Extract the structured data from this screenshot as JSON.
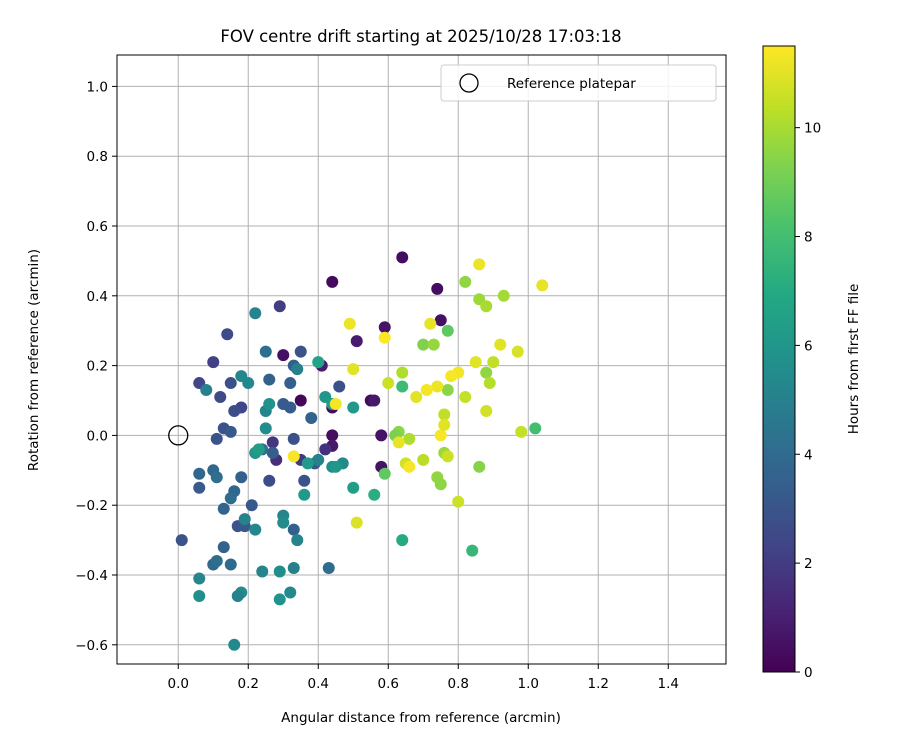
{
  "chart_data": {
    "type": "scatter",
    "title": "FOV centre drift starting at 2025/10/28 17:03:18",
    "xlabel": "Angular distance from reference (arcmin)",
    "ylabel": "Rotation from reference (arcmin)",
    "xlim": [
      -0.175,
      1.565
    ],
    "ylim": [
      -0.655,
      1.09
    ],
    "xticks": [
      0.0,
      0.2,
      0.4,
      0.6,
      0.8,
      1.0,
      1.2,
      1.4
    ],
    "xtick_labels": [
      "0.0",
      "0.2",
      "0.4",
      "0.6",
      "0.8",
      "1.0",
      "1.2",
      "1.4"
    ],
    "yticks": [
      -0.6,
      -0.4,
      -0.2,
      0.0,
      0.2,
      0.4,
      0.6,
      0.8,
      1.0
    ],
    "ytick_labels": [
      "−0.6",
      "−0.4",
      "−0.2",
      "0.0",
      "0.2",
      "0.4",
      "0.6",
      "0.8",
      "1.0"
    ],
    "grid": true,
    "legend": {
      "placement": "top-right",
      "label": "Reference platepar"
    },
    "reference_point": {
      "x": 0.0,
      "y": 0.0
    },
    "colorbar": {
      "label": "Hours from first FF file",
      "range": [
        0,
        11.5
      ],
      "ticks": [
        0,
        2,
        4,
        6,
        8,
        10
      ],
      "tick_labels": [
        "0",
        "2",
        "4",
        "6",
        "8",
        "10"
      ],
      "colormap": "viridis"
    },
    "points": [
      {
        "x": 0.44,
        "y": 0.44,
        "h": 0.3
      },
      {
        "x": 0.64,
        "y": 0.51,
        "h": 0.4
      },
      {
        "x": 0.74,
        "y": 0.42,
        "h": 0.4
      },
      {
        "x": 0.59,
        "y": 0.31,
        "h": 0.6
      },
      {
        "x": 0.75,
        "y": 0.33,
        "h": 0.5
      },
      {
        "x": 0.51,
        "y": 0.27,
        "h": 0.9
      },
      {
        "x": 0.55,
        "y": 0.1,
        "h": 0.3
      },
      {
        "x": 0.56,
        "y": 0.1,
        "h": 0.8
      },
      {
        "x": 0.44,
        "y": 0.08,
        "h": 0.4
      },
      {
        "x": 0.44,
        "y": 0.0,
        "h": 0.4
      },
      {
        "x": 0.58,
        "y": 0.0,
        "h": 0.6
      },
      {
        "x": 0.44,
        "y": -0.03,
        "h": 0.8
      },
      {
        "x": 0.58,
        "y": -0.09,
        "h": 0.6
      },
      {
        "x": 0.35,
        "y": 0.1,
        "h": 0.2
      },
      {
        "x": 0.3,
        "y": 0.23,
        "h": 0.5
      },
      {
        "x": 0.41,
        "y": 0.2,
        "h": 0.9
      },
      {
        "x": 0.29,
        "y": 0.37,
        "h": 2.1
      },
      {
        "x": 0.1,
        "y": 0.21,
        "h": 2.2
      },
      {
        "x": 0.14,
        "y": 0.29,
        "h": 2.6
      },
      {
        "x": 0.06,
        "y": 0.15,
        "h": 2.4
      },
      {
        "x": 0.12,
        "y": 0.11,
        "h": 2.6
      },
      {
        "x": 0.15,
        "y": 0.15,
        "h": 2.8
      },
      {
        "x": 0.18,
        "y": 0.08,
        "h": 2.4
      },
      {
        "x": 0.16,
        "y": 0.07,
        "h": 2.7
      },
      {
        "x": 0.13,
        "y": 0.02,
        "h": 2.9
      },
      {
        "x": 0.11,
        "y": -0.01,
        "h": 3.0
      },
      {
        "x": 0.15,
        "y": 0.01,
        "h": 3.2
      },
      {
        "x": 0.27,
        "y": -0.02,
        "h": 1.8
      },
      {
        "x": 0.28,
        "y": -0.07,
        "h": 1.5
      },
      {
        "x": 0.33,
        "y": -0.01,
        "h": 2.8
      },
      {
        "x": 0.35,
        "y": -0.07,
        "h": 1.9
      },
      {
        "x": 0.36,
        "y": -0.13,
        "h": 3.0
      },
      {
        "x": 0.39,
        "y": -0.08,
        "h": 3.1
      },
      {
        "x": 0.42,
        "y": -0.04,
        "h": 1.6
      },
      {
        "x": 0.46,
        "y": 0.14,
        "h": 2.8
      },
      {
        "x": 0.35,
        "y": 0.24,
        "h": 2.9
      },
      {
        "x": 0.32,
        "y": 0.08,
        "h": 3.3
      },
      {
        "x": 0.32,
        "y": 0.15,
        "h": 3.5
      },
      {
        "x": 0.33,
        "y": 0.2,
        "h": 3.4
      },
      {
        "x": 0.3,
        "y": 0.09,
        "h": 3.3
      },
      {
        "x": 0.26,
        "y": 0.16,
        "h": 3.6
      },
      {
        "x": 0.25,
        "y": 0.24,
        "h": 4.2
      },
      {
        "x": 0.22,
        "y": -0.05,
        "h": 4.0
      },
      {
        "x": 0.24,
        "y": -0.04,
        "h": 4.3
      },
      {
        "x": 0.21,
        "y": -0.2,
        "h": 3.2
      },
      {
        "x": 0.18,
        "y": -0.12,
        "h": 3.5
      },
      {
        "x": 0.16,
        "y": -0.16,
        "h": 3.8
      },
      {
        "x": 0.15,
        "y": -0.18,
        "h": 4.1
      },
      {
        "x": 0.13,
        "y": -0.21,
        "h": 3.7
      },
      {
        "x": 0.17,
        "y": -0.26,
        "h": 2.9
      },
      {
        "x": 0.19,
        "y": -0.26,
        "h": 3.1
      },
      {
        "x": 0.13,
        "y": -0.32,
        "h": 3.6
      },
      {
        "x": 0.1,
        "y": -0.37,
        "h": 3.9
      },
      {
        "x": 0.11,
        "y": -0.36,
        "h": 4.2
      },
      {
        "x": 0.15,
        "y": -0.37,
        "h": 4.0
      },
      {
        "x": 0.06,
        "y": -0.11,
        "h": 3.8
      },
      {
        "x": 0.06,
        "y": -0.15,
        "h": 3.3
      },
      {
        "x": 0.1,
        "y": -0.1,
        "h": 3.8
      },
      {
        "x": 0.11,
        "y": -0.12,
        "h": 4.2
      },
      {
        "x": 0.01,
        "y": -0.3,
        "h": 3.0
      },
      {
        "x": 0.33,
        "y": -0.27,
        "h": 3.5
      },
      {
        "x": 0.26,
        "y": -0.13,
        "h": 2.7
      },
      {
        "x": 0.27,
        "y": -0.05,
        "h": 3.4
      },
      {
        "x": 0.38,
        "y": 0.05,
        "h": 3.6
      },
      {
        "x": 0.43,
        "y": -0.38,
        "h": 4.1
      },
      {
        "x": 0.22,
        "y": 0.35,
        "h": 5.1
      },
      {
        "x": 0.18,
        "y": 0.17,
        "h": 5.3
      },
      {
        "x": 0.08,
        "y": 0.13,
        "h": 5.0
      },
      {
        "x": 0.2,
        "y": 0.15,
        "h": 5.4
      },
      {
        "x": 0.25,
        "y": 0.07,
        "h": 5.2
      },
      {
        "x": 0.25,
        "y": 0.02,
        "h": 5.6
      },
      {
        "x": 0.26,
        "y": 0.09,
        "h": 5.8
      },
      {
        "x": 0.34,
        "y": 0.19,
        "h": 5.0
      },
      {
        "x": 0.4,
        "y": 0.21,
        "h": 6.6
      },
      {
        "x": 0.42,
        "y": 0.11,
        "h": 6.0
      },
      {
        "x": 0.44,
        "y": 0.09,
        "h": 6.3
      },
      {
        "x": 0.5,
        "y": 0.08,
        "h": 6.1
      },
      {
        "x": 0.3,
        "y": -0.23,
        "h": 5.2
      },
      {
        "x": 0.3,
        "y": -0.25,
        "h": 5.5
      },
      {
        "x": 0.34,
        "y": -0.3,
        "h": 5.1
      },
      {
        "x": 0.36,
        "y": -0.17,
        "h": 6.2
      },
      {
        "x": 0.4,
        "y": -0.07,
        "h": 5.0
      },
      {
        "x": 0.47,
        "y": -0.08,
        "h": 5.4
      },
      {
        "x": 0.44,
        "y": -0.09,
        "h": 5.6
      },
      {
        "x": 0.5,
        "y": -0.15,
        "h": 6.4
      },
      {
        "x": 0.22,
        "y": -0.27,
        "h": 5.3
      },
      {
        "x": 0.24,
        "y": -0.39,
        "h": 5.2
      },
      {
        "x": 0.29,
        "y": -0.39,
        "h": 5.6
      },
      {
        "x": 0.33,
        "y": -0.38,
        "h": 5.0
      },
      {
        "x": 0.32,
        "y": -0.45,
        "h": 5.4
      },
      {
        "x": 0.29,
        "y": -0.47,
        "h": 5.8
      },
      {
        "x": 0.18,
        "y": -0.45,
        "h": 5.5
      },
      {
        "x": 0.17,
        "y": -0.46,
        "h": 5.0
      },
      {
        "x": 0.06,
        "y": -0.41,
        "h": 5.3
      },
      {
        "x": 0.06,
        "y": -0.46,
        "h": 5.7
      },
      {
        "x": 0.16,
        "y": -0.6,
        "h": 5.4
      },
      {
        "x": 0.19,
        "y": -0.24,
        "h": 5.1
      },
      {
        "x": 0.22,
        "y": -0.05,
        "h": 6.0
      },
      {
        "x": 0.23,
        "y": -0.04,
        "h": 6.4
      },
      {
        "x": 0.37,
        "y": -0.08,
        "h": 6.2
      },
      {
        "x": 0.45,
        "y": -0.09,
        "h": 6.0
      },
      {
        "x": 0.56,
        "y": -0.17,
        "h": 7.2
      },
      {
        "x": 0.64,
        "y": -0.3,
        "h": 7.0
      },
      {
        "x": 0.64,
        "y": 0.14,
        "h": 7.8
      },
      {
        "x": 0.84,
        "y": -0.33,
        "h": 7.6
      },
      {
        "x": 1.02,
        "y": 0.02,
        "h": 8.0
      },
      {
        "x": 0.59,
        "y": -0.11,
        "h": 8.6
      },
      {
        "x": 0.77,
        "y": 0.3,
        "h": 8.6
      },
      {
        "x": 0.63,
        "y": 0.01,
        "h": 9.5
      },
      {
        "x": 0.62,
        "y": 0.0,
        "h": 9.2
      },
      {
        "x": 0.7,
        "y": 0.26,
        "h": 9.3
      },
      {
        "x": 0.73,
        "y": 0.26,
        "h": 9.7
      },
      {
        "x": 0.77,
        "y": 0.13,
        "h": 9.5
      },
      {
        "x": 0.82,
        "y": 0.44,
        "h": 9.6
      },
      {
        "x": 0.86,
        "y": 0.39,
        "h": 9.8
      },
      {
        "x": 0.88,
        "y": 0.37,
        "h": 10.0
      },
      {
        "x": 0.93,
        "y": 0.4,
        "h": 9.9
      },
      {
        "x": 0.88,
        "y": 0.18,
        "h": 9.6
      },
      {
        "x": 0.89,
        "y": 0.15,
        "h": 10.2
      },
      {
        "x": 0.9,
        "y": 0.21,
        "h": 10.4
      },
      {
        "x": 0.82,
        "y": 0.11,
        "h": 10.5
      },
      {
        "x": 0.76,
        "y": -0.05,
        "h": 9.8
      },
      {
        "x": 0.77,
        "y": -0.06,
        "h": 10.6
      },
      {
        "x": 0.74,
        "y": -0.12,
        "h": 9.6
      },
      {
        "x": 0.75,
        "y": -0.14,
        "h": 9.5
      },
      {
        "x": 0.7,
        "y": -0.07,
        "h": 10.3
      },
      {
        "x": 0.66,
        "y": -0.01,
        "h": 10.1
      },
      {
        "x": 0.65,
        "y": -0.08,
        "h": 10.7
      },
      {
        "x": 0.64,
        "y": 0.18,
        "h": 10.1
      },
      {
        "x": 0.6,
        "y": 0.15,
        "h": 10.6
      },
      {
        "x": 0.76,
        "y": 0.06,
        "h": 10.4
      },
      {
        "x": 0.8,
        "y": -0.19,
        "h": 10.6
      },
      {
        "x": 0.86,
        "y": -0.09,
        "h": 9.4
      },
      {
        "x": 0.88,
        "y": 0.07,
        "h": 10.7
      },
      {
        "x": 0.98,
        "y": 0.01,
        "h": 10.5
      },
      {
        "x": 0.97,
        "y": 0.24,
        "h": 10.8
      },
      {
        "x": 0.92,
        "y": 0.26,
        "h": 11.0
      },
      {
        "x": 1.04,
        "y": 0.43,
        "h": 11.1
      },
      {
        "x": 0.86,
        "y": 0.49,
        "h": 11.2
      },
      {
        "x": 0.85,
        "y": 0.21,
        "h": 11.0
      },
      {
        "x": 0.72,
        "y": 0.32,
        "h": 11.1
      },
      {
        "x": 0.74,
        "y": 0.14,
        "h": 11.2
      },
      {
        "x": 0.71,
        "y": 0.13,
        "h": 11.3
      },
      {
        "x": 0.68,
        "y": 0.11,
        "h": 11.0
      },
      {
        "x": 0.8,
        "y": 0.18,
        "h": 11.3
      },
      {
        "x": 0.78,
        "y": 0.17,
        "h": 11.4
      },
      {
        "x": 0.49,
        "y": 0.32,
        "h": 11.2
      },
      {
        "x": 0.5,
        "y": 0.19,
        "h": 11.0
      },
      {
        "x": 0.45,
        "y": 0.09,
        "h": 11.3
      },
      {
        "x": 0.59,
        "y": 0.28,
        "h": 11.5
      },
      {
        "x": 0.51,
        "y": -0.25,
        "h": 10.9
      },
      {
        "x": 0.33,
        "y": -0.06,
        "h": 11.4
      },
      {
        "x": 0.63,
        "y": -0.02,
        "h": 11.1
      },
      {
        "x": 0.75,
        "y": 0.0,
        "h": 11.4
      },
      {
        "x": 0.76,
        "y": 0.03,
        "h": 11.0
      },
      {
        "x": 0.66,
        "y": -0.09,
        "h": 11.4
      }
    ]
  }
}
